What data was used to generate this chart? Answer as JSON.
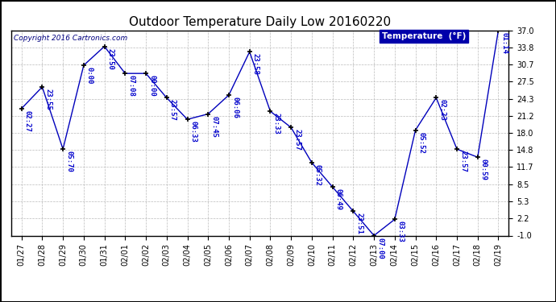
{
  "title": "Outdoor Temperature Daily Low 20160220",
  "copyright_text": "Copyright 2016 Cartronics.com",
  "legend_label": "Temperature  (°F)",
  "x_labels": [
    "01/27",
    "01/28",
    "01/29",
    "01/30",
    "01/31",
    "02/01",
    "02/02",
    "02/03",
    "02/04",
    "02/05",
    "02/06",
    "02/07",
    "02/08",
    "02/09",
    "02/10",
    "02/11",
    "02/12",
    "02/13",
    "02/14",
    "02/15",
    "02/16",
    "02/17",
    "02/18",
    "02/19"
  ],
  "y_values": [
    22.5,
    26.5,
    15.0,
    30.5,
    34.0,
    29.0,
    29.0,
    24.5,
    20.5,
    21.5,
    25.0,
    33.0,
    22.0,
    19.0,
    12.5,
    8.0,
    3.5,
    -1.0,
    2.0,
    18.5,
    24.5,
    15.0,
    13.5,
    37.0
  ],
  "annotations": [
    "02:27",
    "23:55",
    "05:70",
    "0:00",
    "23:50",
    "07:08",
    "00:00",
    "23:57",
    "06:33",
    "07:45",
    "06:06",
    "23:58",
    "23:33",
    "23:57",
    "05:32",
    "06:49",
    "23:51",
    "07:00",
    "03:33",
    "05:52",
    "02:23",
    "23:57",
    "00:59",
    "01:14"
  ],
  "y_ticks": [
    -1.0,
    2.2,
    5.3,
    8.5,
    11.7,
    14.8,
    18.0,
    21.2,
    24.3,
    27.5,
    30.7,
    33.8,
    37.0
  ],
  "line_color": "#0000bb",
  "marker_color": "#000000",
  "bg_color": "#ffffff",
  "grid_color": "#bbbbbb",
  "title_color": "#000000",
  "annotation_color": "#0000cc",
  "border_color": "#000000",
  "ylim": [
    -1.0,
    37.0
  ],
  "title_fontsize": 11,
  "axis_fontsize": 7,
  "annotation_fontsize": 6.5,
  "copyright_fontsize": 6.5,
  "legend_bg": "#0000aa",
  "legend_fg": "#ffffff",
  "legend_fontsize": 7.5
}
